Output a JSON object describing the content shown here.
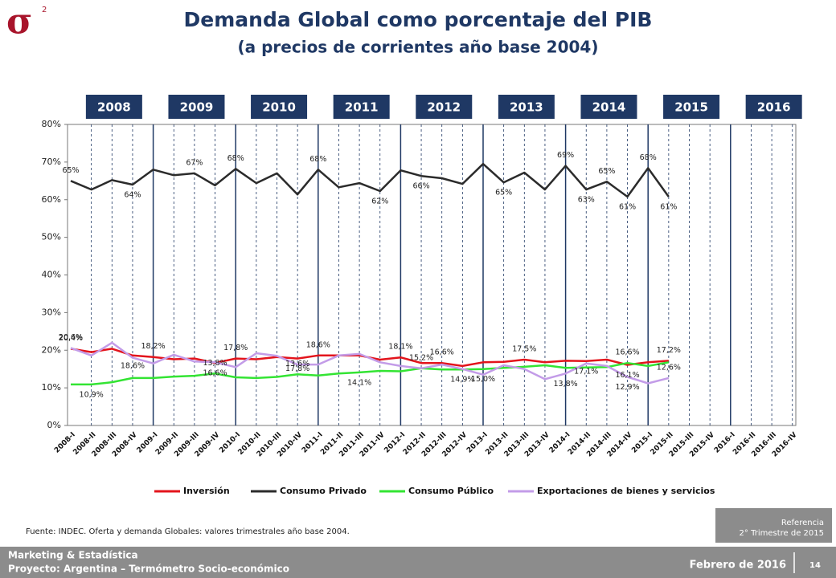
{
  "header": {
    "logo": "σ",
    "logo_sup": "2"
  },
  "chart_data": {
    "type": "line",
    "title": "Demanda Global como porcentaje del PIB",
    "subtitle": "(a precios de corrientes año base 2004)",
    "years": [
      "2008",
      "2009",
      "2010",
      "2011",
      "2012",
      "2013",
      "2014",
      "2015",
      "2016"
    ],
    "categories": [
      "2008-I",
      "2008-II",
      "2008-III",
      "2008-IV",
      "2009-I",
      "2009-II",
      "2009-III",
      "2009-IV",
      "2010-I",
      "2010-II",
      "2010-III",
      "2010-IV",
      "2011-I",
      "2011-II",
      "2011-III",
      "2011-IV",
      "2012-I",
      "2012-II",
      "2012-III",
      "2012-IV",
      "2013-I",
      "2013-II",
      "2013-III",
      "2013-IV",
      "2014-I",
      "2014-II",
      "2014-III",
      "2014-IV",
      "2015-I",
      "2015-II",
      "2015-III",
      "2015-IV",
      "2016-I",
      "2016-II",
      "2016-III",
      "2016-IV"
    ],
    "ylim": [
      0,
      80
    ],
    "yticks": [
      {
        "value": 0,
        "label": "0%"
      },
      {
        "value": 10,
        "label": "10%"
      },
      {
        "value": 20,
        "label": "20%"
      },
      {
        "value": 30,
        "label": "30%"
      },
      {
        "value": 40,
        "label": "40%"
      },
      {
        "value": 50,
        "label": "50%"
      },
      {
        "value": 60,
        "label": "60%"
      },
      {
        "value": 70,
        "label": "70%"
      },
      {
        "value": 80,
        "label": "80%"
      }
    ],
    "series": [
      {
        "name": "Inversión",
        "color": "#e3141c",
        "values": [
          20.4,
          19.5,
          20.4,
          18.6,
          18.2,
          17.6,
          17.8,
          16.6,
          17.8,
          17.6,
          18.2,
          17.8,
          18.6,
          18.6,
          18.6,
          17.5,
          18.1,
          16.6,
          16.6,
          15.8,
          16.8,
          16.9,
          17.5,
          16.8,
          17.2,
          17.1,
          17.5,
          16.1,
          16.8,
          17.2,
          null,
          null,
          null,
          null,
          null,
          null
        ],
        "value_labels": [
          "20,4%",
          null,
          null,
          "18,6%",
          "18,2%",
          null,
          null,
          "16,6%",
          "17,8%",
          null,
          null,
          "17,8%",
          "18,6%",
          null,
          null,
          null,
          "18,1%",
          null,
          "16,6%",
          null,
          null,
          null,
          "17,5%",
          null,
          null,
          "17,1%",
          null,
          "16,1%",
          null,
          "17,2%",
          null,
          null,
          null,
          null,
          null,
          null
        ]
      },
      {
        "name": "Consumo Privado",
        "color": "#2b2b2b",
        "values": [
          65,
          62.7,
          65.2,
          64,
          68,
          66.5,
          67,
          63.8,
          68.2,
          64.4,
          67,
          61.4,
          68,
          63.3,
          64.4,
          62.3,
          67.8,
          66.3,
          65.7,
          64.2,
          69.5,
          64.6,
          67.2,
          62.7,
          69,
          62.7,
          64.8,
          60.8,
          68.4,
          60.8,
          null,
          null,
          null,
          null,
          null,
          null
        ],
        "value_labels": [
          "65%",
          null,
          null,
          "64%",
          null,
          null,
          "67%",
          null,
          "68%",
          null,
          null,
          null,
          "68%",
          null,
          null,
          "62%",
          null,
          "66%",
          null,
          null,
          null,
          "65%",
          null,
          null,
          "69%",
          "63%",
          "65%",
          "61%",
          "68%",
          "61%",
          null,
          null,
          null,
          null,
          null,
          null
        ]
      },
      {
        "name": "Consumo Público",
        "color": "#33e433",
        "values": [
          10.9,
          10.9,
          11.5,
          12.6,
          12.6,
          13,
          13.2,
          13.8,
          12.8,
          12.6,
          12.9,
          13.6,
          13.3,
          13.8,
          14.1,
          14.5,
          14.4,
          15.2,
          14.9,
          14.9,
          15,
          15.3,
          15.6,
          16,
          15.3,
          15.4,
          15.5,
          16.6,
          15.8,
          16.8,
          null,
          null,
          null,
          null,
          null,
          null
        ],
        "value_labels": [
          null,
          "10,9%",
          null,
          null,
          null,
          null,
          null,
          "13,8%",
          null,
          null,
          null,
          "13,6%",
          null,
          null,
          "14,1%",
          null,
          null,
          "15,2%",
          null,
          "14,9%",
          "15,0%",
          null,
          null,
          null,
          null,
          null,
          null,
          "16,6%",
          null,
          null,
          null,
          null,
          null,
          null,
          null,
          null
        ]
      },
      {
        "name": "Exportaciones de bienes y servicios",
        "color": "#c39ce8",
        "values": [
          20.6,
          18.6,
          22,
          18,
          16.5,
          18.8,
          17,
          16.8,
          15.5,
          19.2,
          18.5,
          16.2,
          16.2,
          18.6,
          19,
          16.8,
          15.8,
          15.2,
          16.2,
          15,
          13.5,
          16,
          15,
          12.3,
          13.8,
          16.5,
          15.8,
          12.9,
          11.2,
          12.6,
          null,
          null,
          null,
          null,
          null,
          null
        ],
        "value_labels": [
          "20,6%",
          null,
          null,
          null,
          null,
          null,
          null,
          null,
          null,
          null,
          null,
          null,
          null,
          null,
          null,
          null,
          null,
          null,
          null,
          null,
          null,
          null,
          null,
          null,
          "13,8%",
          null,
          null,
          "12,9%",
          null,
          "12,6%",
          null,
          null,
          null,
          null,
          null,
          null
        ]
      }
    ]
  },
  "source": "Fuente: INDEC. Oferta y demanda Globales: valores trimestrales año base 2004.",
  "reference": {
    "title": "Referencia",
    "text": "2° Trimestre de 2015"
  },
  "footer": {
    "line1": "Marketing & Estadística",
    "line2": "Proyecto: Argentina – Termómetro Socio-económico",
    "date": "Febrero de 2016",
    "page": "14"
  }
}
